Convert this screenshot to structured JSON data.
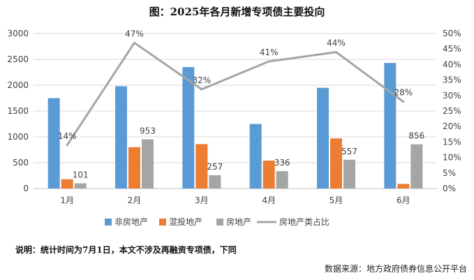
{
  "chart_data": {
    "type": "bar",
    "title": "图：2025年各月新增专项债主要投向",
    "categories": [
      "1月",
      "2月",
      "3月",
      "4月",
      "5月",
      "6月"
    ],
    "series": [
      {
        "name": "非房地产",
        "type": "bar",
        "axis": "left",
        "color": "#5b9bd5",
        "values": [
          1750,
          1980,
          2350,
          1250,
          1950,
          2430
        ]
      },
      {
        "name": "混投地产",
        "type": "bar",
        "axis": "left",
        "color": "#ed7d31",
        "values": [
          180,
          800,
          860,
          540,
          970,
          90
        ]
      },
      {
        "name": "房地产",
        "type": "bar",
        "axis": "left",
        "color": "#a5a5a5",
        "values": [
          101,
          953,
          257,
          336,
          557,
          856
        ],
        "labels": [
          "101",
          "953",
          "257",
          "336",
          "557",
          "856"
        ]
      },
      {
        "name": "房地产类占比",
        "type": "line",
        "axis": "right",
        "color": "#a5a5a5",
        "values": [
          14,
          47,
          32,
          41,
          44,
          28
        ],
        "labels": [
          "14%",
          "47%",
          "32%",
          "41%",
          "44%",
          "28%"
        ]
      }
    ],
    "y_left": {
      "min": 0,
      "max": 3000,
      "ticks": [
        "0",
        "500",
        "1000",
        "1500",
        "2000",
        "2500",
        "3000"
      ]
    },
    "y_right": {
      "min": 0,
      "max": 50,
      "ticks": [
        "0%",
        "5%",
        "10%",
        "15%",
        "20%",
        "25%",
        "30%",
        "35%",
        "40%",
        "45%",
        "50%"
      ]
    },
    "grid": true,
    "legend_position": "bottom"
  },
  "note": "说明：统计时间为7月1日，本文不涉及再融资专项债，下同",
  "source": "数据来源：地方政府债券信息公开平台"
}
